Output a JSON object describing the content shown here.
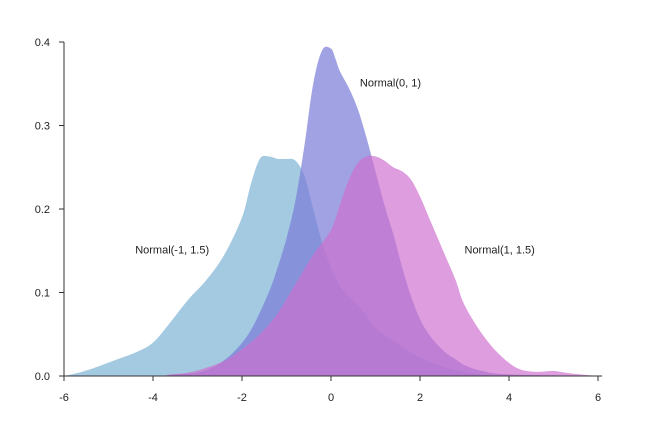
{
  "chart_data": {
    "type": "area",
    "title": "",
    "xlabel": "",
    "ylabel": "",
    "xlim": [
      -6,
      6
    ],
    "ylim": [
      0,
      0.4
    ],
    "x_ticks": [
      "-6",
      "-4",
      "-2",
      "0",
      "2",
      "4",
      "6"
    ],
    "x_tick_values": [
      -6,
      -4,
      -2,
      0,
      2,
      4,
      6
    ],
    "y_ticks": [
      "0.0",
      "0.1",
      "0.2",
      "0.3",
      "0.4"
    ],
    "y_tick_values": [
      0,
      0.1,
      0.2,
      0.3,
      0.4
    ],
    "grid": false,
    "legend": "none",
    "series": [
      {
        "color": "#7fb6d6",
        "opacity": 0.72,
        "x": [
          -6.0,
          -5.6,
          -5.2,
          -4.8,
          -4.4,
          -4.0,
          -3.6,
          -3.2,
          -2.8,
          -2.4,
          -2.0,
          -1.8,
          -1.6,
          -1.4,
          -1.2,
          -1.0,
          -0.8,
          -0.6,
          -0.4,
          -0.2,
          0.0,
          0.2,
          0.4,
          0.6,
          0.8,
          1.0,
          1.4,
          1.8,
          2.2,
          2.6,
          3.0,
          3.4,
          4.0,
          6.0
        ],
        "y": [
          0.0,
          0.005,
          0.012,
          0.02,
          0.028,
          0.04,
          0.065,
          0.092,
          0.115,
          0.145,
          0.19,
          0.23,
          0.26,
          0.263,
          0.26,
          0.26,
          0.258,
          0.24,
          0.2,
          0.16,
          0.13,
          0.108,
          0.095,
          0.085,
          0.072,
          0.058,
          0.042,
          0.028,
          0.017,
          0.01,
          0.005,
          0.002,
          0.0,
          0.0
        ]
      },
      {
        "color": "#7b7ed8",
        "opacity": 0.72,
        "x": [
          -6.0,
          -4.0,
          -3.5,
          -3.0,
          -2.6,
          -2.2,
          -1.8,
          -1.4,
          -1.2,
          -1.0,
          -0.8,
          -0.6,
          -0.4,
          -0.2,
          0.0,
          0.1,
          0.2,
          0.4,
          0.6,
          0.8,
          1.0,
          1.2,
          1.4,
          1.6,
          1.8,
          2.0,
          2.2,
          2.4,
          2.6,
          2.8,
          3.0,
          3.4,
          4.0,
          6.0
        ],
        "y": [
          0.0,
          0.0,
          0.002,
          0.004,
          0.012,
          0.028,
          0.055,
          0.1,
          0.13,
          0.165,
          0.21,
          0.275,
          0.35,
          0.39,
          0.392,
          0.38,
          0.365,
          0.345,
          0.32,
          0.285,
          0.245,
          0.205,
          0.17,
          0.13,
          0.095,
          0.068,
          0.05,
          0.037,
          0.027,
          0.02,
          0.013,
          0.006,
          0.002,
          0.0
        ]
      },
      {
        "color": "#cf6fcf",
        "opacity": 0.68,
        "x": [
          -6.0,
          -4.0,
          -3.6,
          -3.2,
          -2.8,
          -2.4,
          -2.0,
          -1.6,
          -1.2,
          -0.8,
          -0.4,
          0.0,
          0.2,
          0.4,
          0.6,
          0.8,
          1.0,
          1.2,
          1.4,
          1.6,
          1.8,
          2.0,
          2.2,
          2.4,
          2.6,
          2.8,
          3.0,
          3.4,
          3.8,
          4.2,
          4.6,
          5.0,
          5.4,
          6.0
        ],
        "y": [
          0.0,
          0.0,
          0.002,
          0.004,
          0.01,
          0.018,
          0.032,
          0.05,
          0.075,
          0.11,
          0.145,
          0.175,
          0.205,
          0.235,
          0.255,
          0.263,
          0.263,
          0.258,
          0.25,
          0.245,
          0.235,
          0.215,
          0.19,
          0.165,
          0.14,
          0.115,
          0.085,
          0.05,
          0.025,
          0.009,
          0.005,
          0.006,
          0.003,
          0.0
        ]
      }
    ],
    "annotations": [
      {
        "text": "Normal(0, 1)",
        "x": 0.65,
        "y": 0.347,
        "anchor": "start"
      },
      {
        "text": "Normal(-1, 1.5)",
        "x": -4.4,
        "y": 0.147,
        "anchor": "start"
      },
      {
        "text": "Normal(1, 1.5)",
        "x": 3.0,
        "y": 0.147,
        "anchor": "start"
      }
    ]
  }
}
